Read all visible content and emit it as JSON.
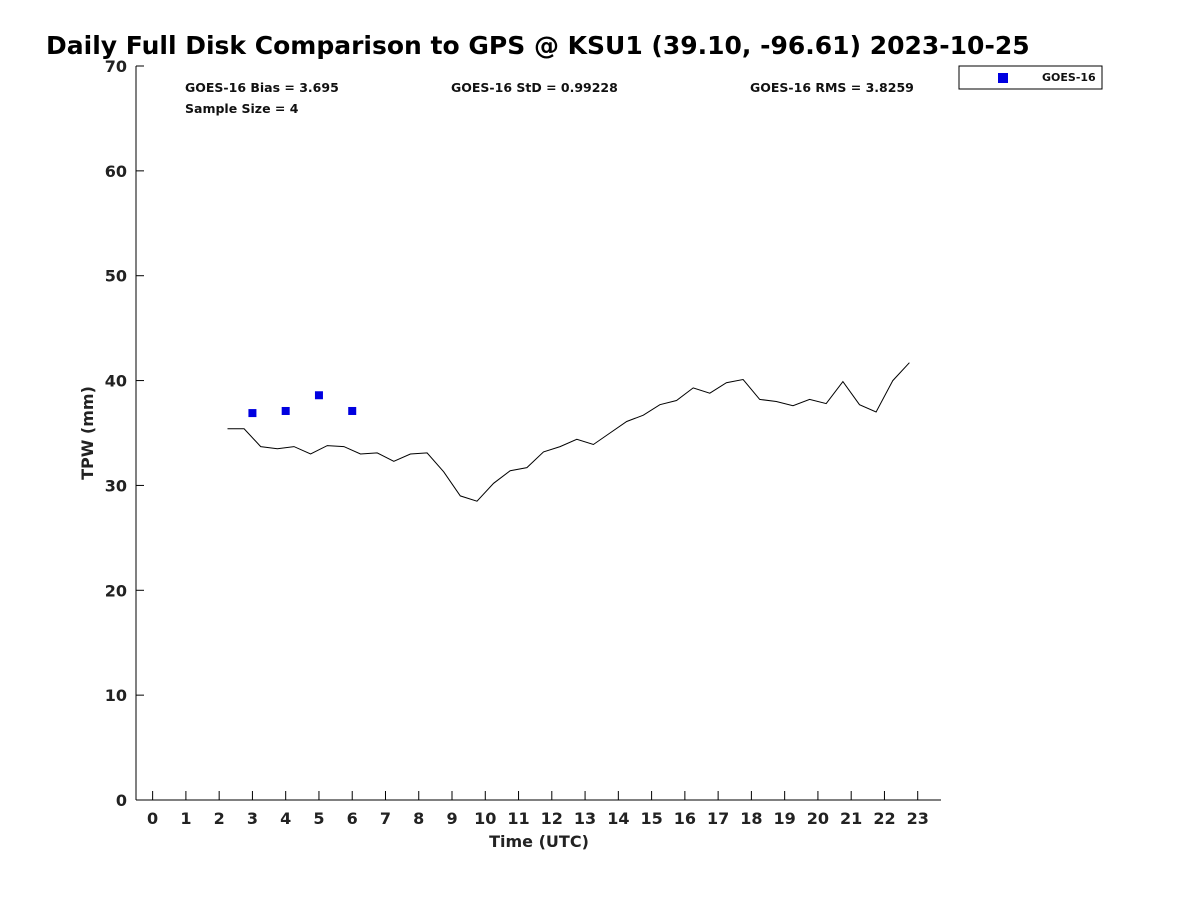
{
  "chart_data": {
    "type": "scatter",
    "title": "Daily Full Disk Comparison to GPS @ KSU1 (39.10, -96.61) 2023-10-25",
    "xlabel": "Time (UTC)",
    "ylabel": "TPW (mm)",
    "xlim": [
      -0.5,
      23.7
    ],
    "ylim": [
      0,
      70
    ],
    "x_ticks": [
      0,
      1,
      2,
      3,
      4,
      5,
      6,
      7,
      8,
      9,
      10,
      11,
      12,
      13,
      14,
      15,
      16,
      17,
      18,
      19,
      20,
      21,
      22,
      23
    ],
    "y_ticks": [
      0,
      10,
      20,
      30,
      40,
      50,
      60,
      70
    ],
    "grid": false,
    "legend_position": "top-right, outside plot",
    "stats": {
      "bias": "GOES-16 Bias = 3.695",
      "std": "GOES-16 StD = 0.99228",
      "rms": "GOES-16 RMS = 3.8259",
      "sample_size": "Sample Size = 4"
    },
    "series": [
      {
        "name": "GOES-16",
        "style": "markers",
        "color": "#0000e0",
        "x": [
          3,
          4,
          5,
          6
        ],
        "y": [
          36.9,
          37.1,
          38.6,
          37.1
        ]
      },
      {
        "style": "line",
        "color": "#000000",
        "x": [
          2.25,
          2.75,
          3.25,
          3.75,
          4.25,
          4.75,
          5.25,
          5.75,
          6.25,
          6.75,
          7.25,
          7.75,
          8.25,
          8.75,
          9.25,
          9.75,
          10.25,
          10.75,
          11.25,
          11.75,
          12.25,
          12.75,
          13.25,
          13.75,
          14.25,
          14.75,
          15.25,
          15.75,
          16.25,
          16.75,
          17.25,
          17.75,
          18.25,
          18.75,
          19.25,
          19.75,
          20.25,
          20.75,
          21.25,
          21.75,
          22.25,
          22.75
        ],
        "y": [
          35.4,
          35.4,
          33.7,
          33.5,
          33.7,
          33.0,
          33.8,
          33.7,
          33.0,
          33.1,
          32.3,
          33.0,
          33.1,
          31.3,
          29.0,
          28.5,
          30.2,
          31.4,
          31.7,
          33.2,
          33.7,
          34.4,
          33.9,
          35.0,
          36.1,
          36.7,
          37.7,
          38.1,
          39.3,
          38.8,
          39.8,
          40.1,
          38.2,
          38.0,
          37.6,
          38.2,
          37.8,
          39.9,
          37.7,
          37.0,
          40.0,
          41.7
        ]
      }
    ]
  }
}
